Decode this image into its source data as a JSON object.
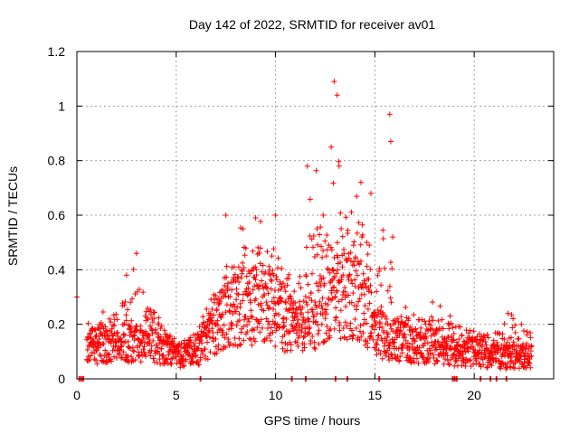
{
  "chart_data": {
    "type": "scatter",
    "title": "Day 142 of 2022, SRMTID for receiver av01",
    "xlabel": "GPS time / hours",
    "ylabel": "SRMTID / TECUs",
    "xlim": [
      0,
      24
    ],
    "ylim": [
      0,
      1.2
    ],
    "x_ticks": [
      0,
      5,
      10,
      15,
      20
    ],
    "y_ticks": [
      0,
      0.2,
      0.4,
      0.6,
      0.8,
      1,
      1.2
    ],
    "y_tick_labels": [
      "0",
      "0.2",
      "0.4",
      "0.6",
      "0.8",
      "1",
      "1.2"
    ],
    "grid": true,
    "marker": "+",
    "color": "#ff0000",
    "series": [
      {
        "name": "av01",
        "envelope_hours": [
          0.5,
          1,
          2,
          3,
          4,
          5,
          6,
          7,
          8,
          9,
          10,
          11,
          12,
          12.5,
          13,
          13.5,
          14,
          14.5,
          15,
          15.5,
          16,
          17,
          18,
          19,
          20,
          21,
          22,
          23
        ],
        "typical_tecu": [
          0.12,
          0.12,
          0.13,
          0.14,
          0.12,
          0.08,
          0.1,
          0.2,
          0.25,
          0.28,
          0.25,
          0.18,
          0.22,
          0.3,
          0.35,
          0.3,
          0.3,
          0.25,
          0.18,
          0.15,
          0.15,
          0.12,
          0.12,
          0.1,
          0.1,
          0.08,
          0.08,
          0.08
        ],
        "max_tecu": [
          0.21,
          0.22,
          0.32,
          0.45,
          0.3,
          0.15,
          0.22,
          0.42,
          0.6,
          0.58,
          0.6,
          0.4,
          0.78,
          0.6,
          1.09,
          0.85,
          0.72,
          0.7,
          0.38,
          0.97,
          0.35,
          0.25,
          0.3,
          0.25,
          0.22,
          0.2,
          0.24,
          0.18
        ],
        "notable_points": [
          {
            "x": 0.0,
            "y": 0.3
          },
          {
            "x": 2.5,
            "y": 0.38
          },
          {
            "x": 3.0,
            "y": 0.46
          },
          {
            "x": 7.5,
            "y": 0.6
          },
          {
            "x": 9.0,
            "y": 0.59
          },
          {
            "x": 10.0,
            "y": 0.6
          },
          {
            "x": 11.6,
            "y": 0.78
          },
          {
            "x": 12.4,
            "y": 0.6
          },
          {
            "x": 12.8,
            "y": 0.85
          },
          {
            "x": 12.95,
            "y": 1.09
          },
          {
            "x": 13.1,
            "y": 1.04
          },
          {
            "x": 13.2,
            "y": 0.78
          },
          {
            "x": 14.3,
            "y": 0.72
          },
          {
            "x": 14.8,
            "y": 0.68
          },
          {
            "x": 15.75,
            "y": 0.97
          },
          {
            "x": 15.8,
            "y": 0.87
          },
          {
            "x": 15.9,
            "y": 0.52
          },
          {
            "x": 21.7,
            "y": 0.24
          }
        ],
        "zero_clusters": [
          0.1,
          0.2,
          0.3,
          6.2,
          10.8,
          11.5,
          13.0,
          13.6,
          15.2,
          18.9,
          19.0,
          19.1,
          20.3,
          20.8,
          21.1,
          21.6
        ]
      }
    ]
  }
}
